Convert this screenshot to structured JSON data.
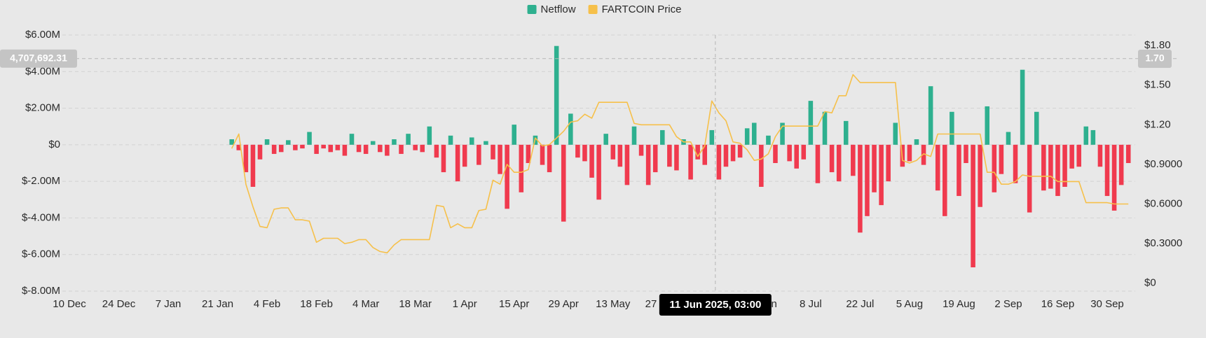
{
  "chart_data": {
    "type": "bar",
    "legend": "top",
    "grid": true,
    "x": [
      "25 Jan",
      "27 Jan",
      "29 Jan",
      "31 Jan",
      "2 Feb",
      "4 Feb",
      "6 Feb",
      "8 Feb",
      "10 Feb",
      "12 Feb",
      "14 Feb",
      "16 Feb",
      "18 Feb",
      "20 Feb",
      "22 Feb",
      "24 Feb",
      "26 Feb",
      "28 Feb",
      "2 Mar",
      "4 Mar",
      "6 Mar",
      "8 Mar",
      "10 Mar",
      "12 Mar",
      "14 Mar",
      "16 Mar",
      "18 Mar",
      "20 Mar",
      "22 Mar",
      "24 Mar",
      "26 Mar",
      "28 Mar",
      "30 Mar",
      "1 Apr",
      "3 Apr",
      "5 Apr",
      "7 Apr",
      "9 Apr",
      "11 Apr",
      "13 Apr",
      "15 Apr",
      "17 Apr",
      "19 Apr",
      "21 Apr",
      "23 Apr",
      "25 Apr",
      "27 Apr",
      "29 Apr",
      "1 May",
      "3 May",
      "5 May",
      "7 May",
      "9 May",
      "11 May",
      "13 May",
      "15 May",
      "17 May",
      "19 May",
      "21 May",
      "23 May",
      "25 May",
      "27 May",
      "29 May",
      "31 May",
      "2 Jun",
      "4 Jun",
      "6 Jun",
      "8 Jun",
      "10 Jun",
      "12 Jun",
      "14 Jun",
      "16 Jun",
      "18 Jun",
      "20 Jun",
      "22 Jun",
      "24 Jun",
      "26 Jun",
      "28 Jun",
      "30 Jun",
      "2 Jul",
      "4 Jul",
      "6 Jul",
      "8 Jul",
      "10 Jul",
      "12 Jul",
      "14 Jul",
      "16 Jul",
      "18 Jul",
      "20 Jul",
      "22 Jul",
      "24 Jul",
      "26 Jul",
      "28 Jul",
      "30 Jul",
      "1 Aug",
      "3 Aug",
      "5 Aug",
      "7 Aug",
      "9 Aug",
      "11 Aug",
      "13 Aug",
      "15 Aug",
      "17 Aug",
      "19 Aug",
      "21 Aug",
      "23 Aug",
      "25 Aug",
      "27 Aug",
      "29 Aug",
      "31 Aug",
      "2 Sep",
      "4 Sep",
      "6 Sep",
      "8 Sep",
      "10 Sep",
      "12 Sep",
      "14 Sep",
      "16 Sep",
      "18 Sep",
      "20 Sep",
      "22 Sep",
      "24 Sep",
      "26 Sep",
      "28 Sep",
      "30 Sep",
      "2 Oct",
      "4 Oct",
      "6 Oct"
    ],
    "series": [
      {
        "name": "Netflow",
        "type": "bar",
        "color": "#2eb08f",
        "negative_color": "#f03a4e",
        "values": [
          300000,
          -300000,
          -1500000,
          -2300000,
          -800000,
          300000,
          -500000,
          -400000,
          250000,
          -300000,
          -200000,
          700000,
          -500000,
          -200000,
          -400000,
          -300000,
          -600000,
          600000,
          -400000,
          -500000,
          200000,
          -400000,
          -600000,
          300000,
          -500000,
          600000,
          -300000,
          -400000,
          1000000,
          -700000,
          -1500000,
          500000,
          -2000000,
          -1200000,
          400000,
          -1100000,
          200000,
          -800000,
          -1600000,
          -3500000,
          1100000,
          -2600000,
          -1000000,
          500000,
          -1100000,
          -1500000,
          5400000,
          -4200000,
          1700000,
          -700000,
          -900000,
          -1800000,
          -3000000,
          600000,
          -800000,
          -1200000,
          -2200000,
          1000000,
          -600000,
          -2200000,
          -1500000,
          800000,
          -1200000,
          -1400000,
          300000,
          -1900000,
          -800000,
          -1100000,
          800000,
          -1900000,
          -1200000,
          -900000,
          -700000,
          900000,
          1200000,
          -2300000,
          500000,
          -1000000,
          1200000,
          -900000,
          -1300000,
          -800000,
          2400000,
          -2100000,
          1800000,
          -1500000,
          -2000000,
          1300000,
          -1700000,
          -4800000,
          -3900000,
          -2600000,
          -3300000,
          -2000000,
          1200000,
          -1200000,
          -900000,
          300000,
          -1100000,
          3200000,
          -2500000,
          -3900000,
          1800000,
          -2800000,
          -1000000,
          -6700000,
          -3400000,
          2100000,
          -2600000,
          -1600000,
          700000,
          -2100000,
          4100000,
          -3700000,
          1800000,
          -2500000,
          -2400000,
          -2800000,
          -2300000,
          -1300000,
          -1200000,
          1000000,
          800000,
          -1200000,
          -2800000,
          -3600000,
          -2200000,
          -1000000
        ]
      },
      {
        "name": "FARTCOIN Price",
        "type": "line",
        "axis": "y2",
        "color": "#f6c04a",
        "values": [
          1.02,
          1.13,
          0.75,
          0.58,
          0.43,
          0.42,
          0.56,
          0.57,
          0.57,
          0.48,
          0.48,
          0.47,
          0.31,
          0.34,
          0.34,
          0.34,
          0.3,
          0.31,
          0.33,
          0.33,
          0.27,
          0.24,
          0.23,
          0.29,
          0.33,
          0.33,
          0.33,
          0.33,
          0.33,
          0.59,
          0.58,
          0.42,
          0.45,
          0.42,
          0.42,
          0.55,
          0.56,
          0.78,
          0.75,
          0.9,
          0.84,
          0.84,
          0.86,
          1.1,
          1.04,
          1.05,
          1.1,
          1.15,
          1.22,
          1.23,
          1.28,
          1.25,
          1.37,
          1.37,
          1.37,
          1.37,
          1.37,
          1.21,
          1.2,
          1.2,
          1.2,
          1.2,
          1.2,
          1.11,
          1.07,
          1.07,
          0.96,
          1.04,
          1.38,
          1.29,
          1.23,
          1.07,
          1.06,
          1.01,
          0.93,
          0.94,
          0.98,
          1.11,
          1.19,
          1.19,
          1.19,
          1.19,
          1.19,
          1.19,
          1.3,
          1.29,
          1.42,
          1.42,
          1.58,
          1.52,
          1.52,
          1.52,
          1.52,
          1.52,
          1.52,
          0.93,
          0.91,
          0.93,
          0.98,
          0.96,
          1.13,
          1.13,
          1.13,
          1.13,
          1.13,
          1.13,
          1.13,
          0.84,
          0.84,
          0.75,
          0.75,
          0.77,
          0.82,
          0.81,
          0.81,
          0.81,
          0.81,
          0.77,
          0.77,
          0.77,
          0.77,
          0.61,
          0.61,
          0.61,
          0.61,
          0.6,
          0.6,
          0.6
        ]
      }
    ],
    "xticks": [
      "10 Dec",
      "24 Dec",
      "7 Jan",
      "21 Jan",
      "4 Feb",
      "18 Feb",
      "4 Mar",
      "18 Mar",
      "1 Apr",
      "15 Apr",
      "29 Apr",
      "13 May",
      "27 May",
      "10 Jun",
      "24 Jun",
      "8 Jul",
      "22 Jul",
      "5 Aug",
      "19 Aug",
      "2 Sep",
      "16 Sep",
      "30 Sep"
    ],
    "ylim": [
      -8000000,
      6000000
    ],
    "yticks": [
      {
        "value": -8000000,
        "label": "$-8.00M"
      },
      {
        "value": -6000000,
        "label": "$-6.00M"
      },
      {
        "value": -4000000,
        "label": "$-4.00M"
      },
      {
        "value": -2000000,
        "label": "$-2.00M"
      },
      {
        "value": 0,
        "label": "$0"
      },
      {
        "value": 2000000,
        "label": "$2.00M"
      },
      {
        "value": 4000000,
        "label": "$4.00M"
      },
      {
        "value": 6000000,
        "label": "$6.00M"
      }
    ],
    "y2lim": [
      -0.06,
      1.88
    ],
    "y2ticks": [
      {
        "value": 0,
        "label": "$0"
      },
      {
        "value": 0.3,
        "label": "$0.3000"
      },
      {
        "value": 0.6,
        "label": "$0.6000"
      },
      {
        "value": 0.9,
        "label": "$0.9000"
      },
      {
        "value": 1.2,
        "label": "$1.20"
      },
      {
        "value": 1.5,
        "label": "$1.50"
      },
      {
        "value": 1.8,
        "label": "$1.80"
      }
    ],
    "crosshair": {
      "x_label": "11 Jun 2025, 03:00",
      "y": {
        "value": 4707692.31,
        "label": "4,707,692.31"
      },
      "y2": {
        "value": 1.7,
        "label": "1.70"
      }
    }
  }
}
